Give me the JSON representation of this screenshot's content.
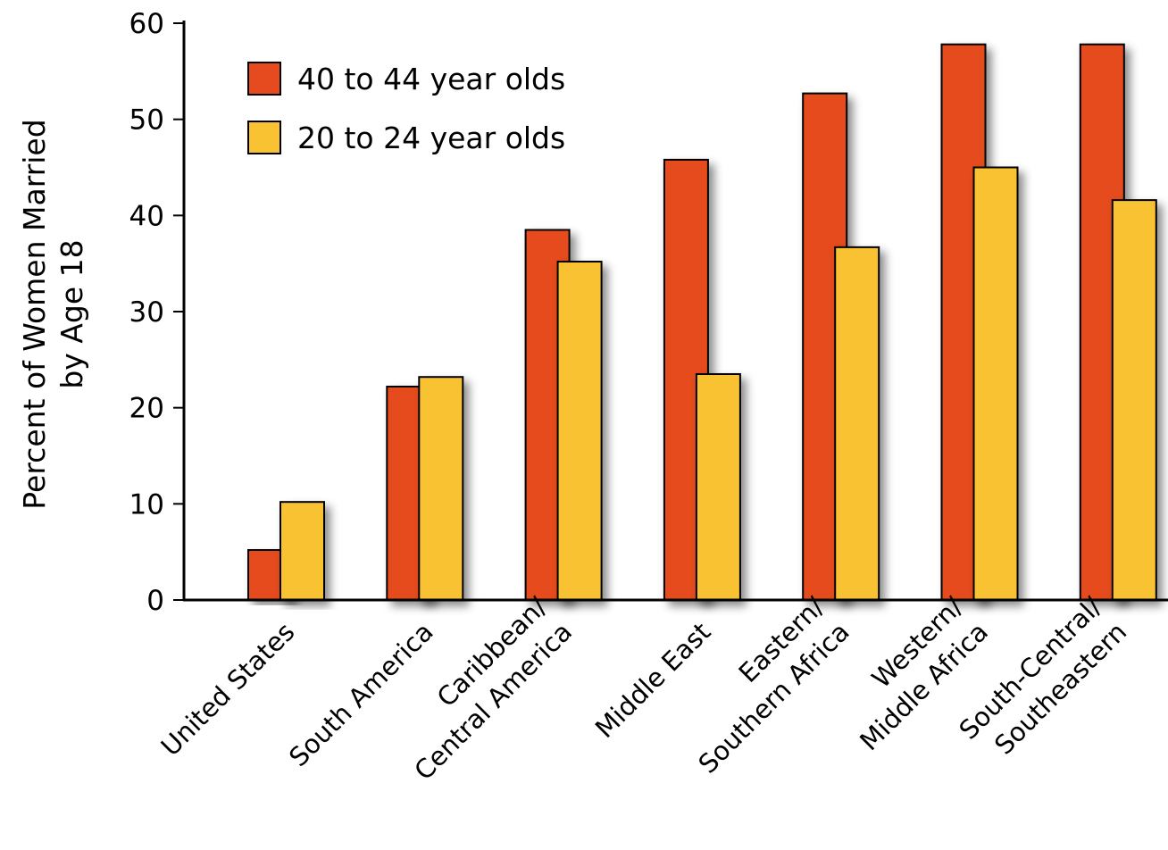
{
  "chart_data": {
    "type": "bar",
    "title": "",
    "xlabel": "",
    "ylabel_lines": [
      "Percent of Women Married",
      "by Age 18"
    ],
    "ylim": [
      0,
      60
    ],
    "yticks": [
      0,
      10,
      20,
      30,
      40,
      50,
      60
    ],
    "grid": false,
    "legend_position": "top-left",
    "categories": [
      [
        "United States"
      ],
      [
        "South America"
      ],
      [
        "Caribbean/",
        "Central America"
      ],
      [
        "Middle East"
      ],
      [
        "Eastern/",
        "Southern Africa"
      ],
      [
        "Western/",
        "Middle Africa"
      ],
      [
        "South-Central/",
        "Southeastern"
      ]
    ],
    "series": [
      {
        "name": "40 to 44 year olds",
        "color": "#e54b1e",
        "values": [
          5.2,
          22.2,
          38.5,
          45.8,
          52.7,
          57.8,
          57.8
        ]
      },
      {
        "name": "20 to 24 year olds",
        "color": "#f8c233",
        "values": [
          10.2,
          23.2,
          35.2,
          23.5,
          36.7,
          45.0,
          41.6
        ]
      }
    ]
  }
}
